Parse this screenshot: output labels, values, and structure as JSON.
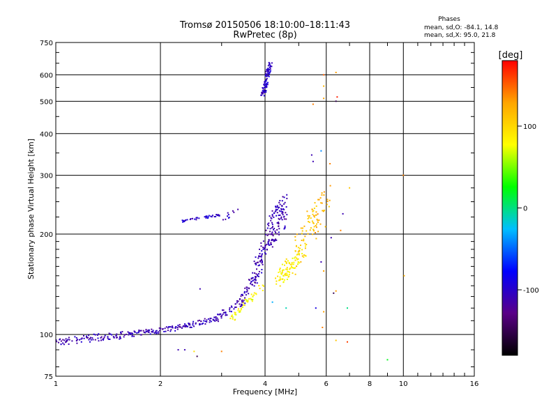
{
  "chart_data": {
    "type": "scatter",
    "title": "Tromsø 20150506 18:10:00–18:11:43",
    "subtitle": "RwPretec (8p)",
    "xlabel": "Frequency [MHz]",
    "ylabel": "Stationary phase Virtual Height [km]",
    "x_scale": "log",
    "y_scale": "log",
    "xlim": [
      1,
      16
    ],
    "ylim": [
      75,
      750
    ],
    "x_ticks": [
      1,
      2,
      4,
      6,
      8,
      10,
      16
    ],
    "y_ticks": [
      75,
      100,
      200,
      300,
      400,
      500,
      600,
      750
    ],
    "grid": true,
    "info": {
      "heading": "Phases",
      "line_o": "mean, sd,O: -84.1, 14.8",
      "line_x": "mean, sd,X:  95.0, 21.8"
    },
    "colorbar": {
      "label": "[deg]",
      "range": [
        -180,
        180
      ],
      "ticks": [
        100,
        0,
        -100
      ],
      "colors": [
        "#000000",
        "#5a0087",
        "#0000ff",
        "#00bfff",
        "#00ff00",
        "#ffff00",
        "#ffa500",
        "#ff0000"
      ]
    },
    "series": [
      {
        "traces": [
          {
            "from": [
              1.0,
              95
            ],
            "to": [
              1.6,
              100
            ],
            "phase": -108,
            "n": 90,
            "spread": 2.5
          },
          {
            "from": [
              1.6,
              100
            ],
            "to": [
              2.3,
              105
            ],
            "phase": -108,
            "n": 80,
            "spread": 2
          },
          {
            "from": [
              2.3,
              105
            ],
            "to": [
              2.9,
              112
            ],
            "phase": -108,
            "n": 55,
            "spread": 2
          },
          {
            "from": [
              2.9,
              112
            ],
            "to": [
              3.4,
              125
            ],
            "phase": -108,
            "n": 40,
            "spread": 3
          },
          {
            "from": [
              3.4,
              125
            ],
            "to": [
              3.75,
              150
            ],
            "phase": -110,
            "n": 50,
            "spread": 6
          },
          {
            "from": [
              3.75,
              150
            ],
            "to": [
              4.1,
              200
            ],
            "phase": -110,
            "n": 70,
            "spread": 15
          },
          {
            "from": [
              4.1,
              200
            ],
            "to": [
              4.6,
              240
            ],
            "phase": -110,
            "n": 110,
            "spread": 25
          },
          {
            "from": [
              3.05,
              220
            ],
            "to": [
              3.4,
              245
            ],
            "phase": -105,
            "n": 10,
            "spread": 3
          },
          {
            "from": [
              2.3,
              218
            ],
            "to": [
              2.95,
              228
            ],
            "phase": -100,
            "n": 40,
            "spread": 1.5
          },
          {
            "from": [
              3.95,
              520
            ],
            "to": [
              4.15,
              660
            ],
            "phase": -100,
            "n": 90,
            "spread": 3
          },
          {
            "from": [
              3.2,
              112
            ],
            "to": [
              3.95,
              140
            ],
            "phase": 80,
            "n": 45,
            "spread": 3
          },
          {
            "from": [
              4.3,
              145
            ],
            "to": [
              5.2,
              180
            ],
            "phase": 85,
            "n": 90,
            "spread": 10
          },
          {
            "from": [
              4.8,
              170
            ],
            "to": [
              5.7,
              240
            ],
            "phase": 110,
            "n": 60,
            "spread": 25
          },
          {
            "from": [
              5.4,
              200
            ],
            "to": [
              6.2,
              260
            ],
            "phase": 120,
            "n": 35,
            "spread": 30
          }
        ]
      }
    ],
    "scattered_points": [
      {
        "x": 2.25,
        "y": 90,
        "phase": -110
      },
      {
        "x": 2.35,
        "y": 90,
        "phase": -110
      },
      {
        "x": 2.5,
        "y": 89,
        "phase": 95
      },
      {
        "x": 2.55,
        "y": 86,
        "phase": -150
      },
      {
        "x": 3.0,
        "y": 89,
        "phase": 140
      },
      {
        "x": 2.6,
        "y": 137,
        "phase": -110
      },
      {
        "x": 5.5,
        "y": 490,
        "phase": 140
      },
      {
        "x": 5.9,
        "y": 555,
        "phase": 120
      },
      {
        "x": 5.9,
        "y": 510,
        "phase": 130
      },
      {
        "x": 6.4,
        "y": 500,
        "phase": -150
      },
      {
        "x": 6.45,
        "y": 515,
        "phase": 170
      },
      {
        "x": 6.4,
        "y": 610,
        "phase": 130
      },
      {
        "x": 5.9,
        "y": 600,
        "phase": 150
      },
      {
        "x": 5.45,
        "y": 345,
        "phase": -110
      },
      {
        "x": 5.5,
        "y": 330,
        "phase": -110
      },
      {
        "x": 5.8,
        "y": 355,
        "phase": -40
      },
      {
        "x": 6.15,
        "y": 325,
        "phase": 140
      },
      {
        "x": 7.0,
        "y": 275,
        "phase": 110
      },
      {
        "x": 6.7,
        "y": 230,
        "phase": -110
      },
      {
        "x": 6.6,
        "y": 205,
        "phase": 140
      },
      {
        "x": 6.2,
        "y": 195,
        "phase": -110
      },
      {
        "x": 5.8,
        "y": 165,
        "phase": -110
      },
      {
        "x": 5.9,
        "y": 155,
        "phase": 130
      },
      {
        "x": 6.4,
        "y": 135,
        "phase": 130
      },
      {
        "x": 6.3,
        "y": 133,
        "phase": -150
      },
      {
        "x": 6.9,
        "y": 120,
        "phase": 0
      },
      {
        "x": 5.9,
        "y": 117,
        "phase": 130
      },
      {
        "x": 5.85,
        "y": 105,
        "phase": 140
      },
      {
        "x": 6.4,
        "y": 96,
        "phase": 110
      },
      {
        "x": 6.9,
        "y": 95,
        "phase": 160
      },
      {
        "x": 9.0,
        "y": 84,
        "phase": 20
      },
      {
        "x": 10.0,
        "y": 300,
        "phase": 140
      },
      {
        "x": 10.05,
        "y": 150,
        "phase": 120
      },
      {
        "x": 4.6,
        "y": 120,
        "phase": -10
      },
      {
        "x": 4.2,
        "y": 125,
        "phase": -30
      },
      {
        "x": 5.6,
        "y": 120,
        "phase": -90
      }
    ]
  }
}
